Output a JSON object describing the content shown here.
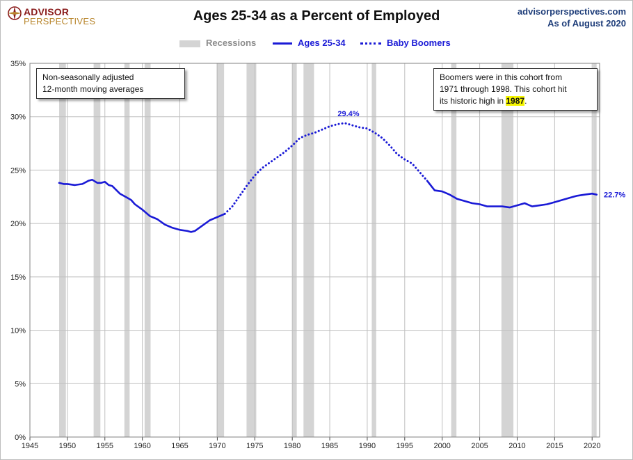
{
  "header": {
    "logo_line1": "ADVISOR",
    "logo_line2": "PERSPECTIVES",
    "title": "Ages 25-34 as a Percent of Employed",
    "source_line1": "advisorperspectives.com",
    "source_line2": "As of August 2020"
  },
  "legend": {
    "recessions": "Recessions",
    "ages": "Ages 25-34",
    "boomers": "Baby Boomers"
  },
  "notes": {
    "left_line1": "Non-seasonally adjusted",
    "left_line2": "12-month moving averages",
    "right_line1": "Boomers were in this cohort from",
    "right_line2": "1971  through 1998.  This cohort hit",
    "right_line3_prefix": "its historic high in ",
    "right_line3_highlight": "1987",
    "right_line3_suffix": "."
  },
  "colors": {
    "series": "#1a1ad6",
    "recession": "#d4d4d4",
    "grid": "#bfbfbf"
  },
  "chart_data": {
    "type": "line",
    "title": "Ages 25-34 as a Percent of Employed",
    "xlabel": "",
    "ylabel": "",
    "xlim": [
      1945,
      2021
    ],
    "ylim": [
      0,
      35
    ],
    "x_ticks": [
      "1945",
      "1950",
      "1955",
      "1960",
      "1965",
      "1970",
      "1975",
      "1980",
      "1985",
      "1990",
      "1995",
      "2000",
      "2005",
      "2010",
      "2015",
      "2020"
    ],
    "y_ticks": [
      "0%",
      "5%",
      "10%",
      "15%",
      "20%",
      "25%",
      "30%",
      "35%"
    ],
    "grid": true,
    "legend_position": "top-center",
    "recessions": [
      [
        1948.9,
        1949.8
      ],
      [
        1953.5,
        1954.4
      ],
      [
        1957.6,
        1958.3
      ],
      [
        1960.3,
        1961.1
      ],
      [
        1969.9,
        1970.9
      ],
      [
        1973.9,
        1975.2
      ],
      [
        1980.0,
        1980.6
      ],
      [
        1981.5,
        1982.9
      ],
      [
        1990.6,
        1991.2
      ],
      [
        2001.2,
        2001.9
      ],
      [
        2007.9,
        2009.5
      ],
      [
        2020.1,
        2020.6
      ]
    ],
    "series": [
      {
        "name": "Ages 25-34",
        "style": "solid",
        "x": [
          1948.9,
          1949.5,
          1950,
          1951,
          1952,
          1952.8,
          1953.3,
          1954,
          1954.5,
          1955,
          1955.5,
          1956,
          1957,
          1958,
          1958.5,
          1959,
          1960,
          1961,
          1962,
          1963,
          1964,
          1965,
          1966,
          1966.5,
          1967,
          1968,
          1969,
          1970,
          1971
        ],
        "y": [
          23.8,
          23.7,
          23.7,
          23.6,
          23.7,
          24.0,
          24.1,
          23.8,
          23.8,
          23.9,
          23.6,
          23.5,
          22.8,
          22.4,
          22.2,
          21.8,
          21.3,
          20.7,
          20.4,
          19.9,
          19.6,
          19.4,
          19.3,
          19.2,
          19.3,
          19.8,
          20.3,
          20.6,
          20.9
        ]
      },
      {
        "name": "Baby Boomers",
        "style": "dotted",
        "x": [
          1971,
          1972,
          1973,
          1974,
          1975,
          1976,
          1977,
          1978,
          1979,
          1980,
          1981,
          1982,
          1983,
          1984,
          1985,
          1986,
          1987,
          1988,
          1989,
          1990,
          1991,
          1992,
          1993,
          1994,
          1995,
          1996,
          1997,
          1998
        ],
        "y": [
          20.9,
          21.6,
          22.6,
          23.6,
          24.5,
          25.2,
          25.7,
          26.2,
          26.7,
          27.3,
          28.0,
          28.3,
          28.5,
          28.8,
          29.1,
          29.3,
          29.4,
          29.2,
          29.0,
          28.9,
          28.5,
          28.0,
          27.3,
          26.5,
          26.0,
          25.6,
          24.8,
          24.0
        ]
      },
      {
        "name": "Ages 25-34 (after 1998)",
        "style": "solid",
        "x": [
          1998,
          1999,
          2000,
          2001,
          2002,
          2003,
          2004,
          2005,
          2006,
          2007,
          2008,
          2009,
          2010,
          2011,
          2012,
          2013,
          2014,
          2015,
          2016,
          2017,
          2018,
          2019,
          2020,
          2020.6
        ],
        "y": [
          24.0,
          23.1,
          23.0,
          22.7,
          22.3,
          22.1,
          21.9,
          21.8,
          21.6,
          21.6,
          21.6,
          21.5,
          21.7,
          21.9,
          21.6,
          21.7,
          21.8,
          22.0,
          22.2,
          22.4,
          22.6,
          22.7,
          22.8,
          22.7
        ]
      }
    ],
    "annotations": {
      "peak_label": "29.4%",
      "peak_year": 1987.5,
      "peak_value": 29.4,
      "last_label": "22.7%",
      "last_value": 22.7
    }
  }
}
